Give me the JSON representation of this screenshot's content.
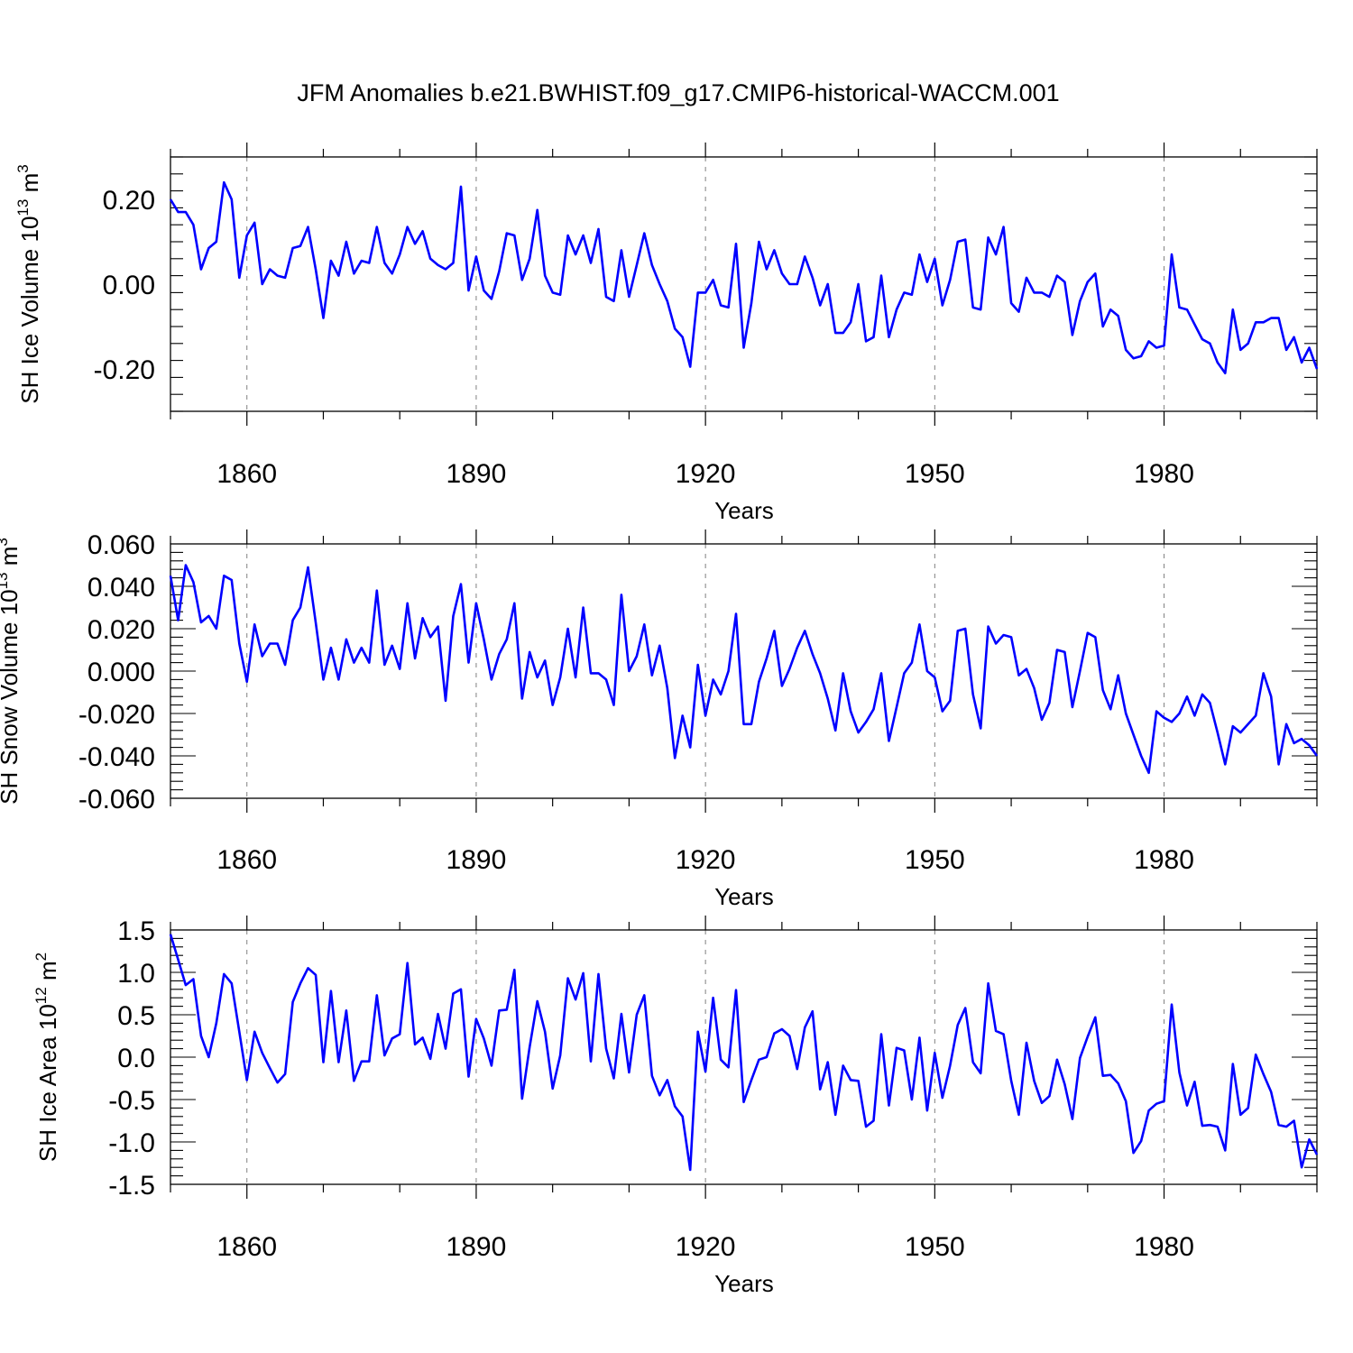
{
  "title": "JFM Anomalies b.e21.BWHIST.f09_g17.CMIP6-historical-WACCM.001",
  "colors": {
    "line": "#0000ff",
    "axis": "#000000",
    "grid": "#808080"
  },
  "chart_data": [
    {
      "type": "line",
      "ylabel": {
        "text": "SH Ice Volume 10",
        "exp": "13",
        "unit": " m",
        "unit_exp": "3"
      },
      "xlabel": "Years",
      "x_start": 1850,
      "xlim": [
        1850,
        2000
      ],
      "x_ticks": [
        1860,
        1890,
        1920,
        1950,
        1980
      ],
      "x_tick_labels": [
        "1860",
        "1890",
        "1920",
        "1950",
        "1980"
      ],
      "ylim": [
        -0.3,
        0.3
      ],
      "y_ticks": [
        0.2,
        0.0,
        -0.2
      ],
      "y_tick_labels": [
        "0.20",
        "0.00",
        "-0.20"
      ],
      "values": [
        0.2,
        0.17,
        0.17,
        0.14,
        0.035,
        0.085,
        0.1,
        0.24,
        0.2,
        0.015,
        0.115,
        0.145,
        0.0,
        0.035,
        0.02,
        0.015,
        0.085,
        0.09,
        0.135,
        0.035,
        -0.08,
        0.055,
        0.02,
        0.1,
        0.025,
        0.055,
        0.05,
        0.135,
        0.05,
        0.025,
        0.07,
        0.135,
        0.095,
        0.125,
        0.06,
        0.045,
        0.035,
        0.05,
        0.23,
        -0.015,
        0.065,
        -0.015,
        -0.035,
        0.03,
        0.12,
        0.115,
        0.01,
        0.06,
        0.175,
        0.02,
        -0.02,
        -0.025,
        0.115,
        0.07,
        0.115,
        0.05,
        0.13,
        -0.03,
        -0.04,
        0.08,
        -0.03,
        0.045,
        0.12,
        0.045,
        0.0,
        -0.04,
        -0.105,
        -0.125,
        -0.195,
        -0.02,
        -0.02,
        0.01,
        -0.05,
        -0.055,
        0.095,
        -0.15,
        -0.045,
        0.1,
        0.035,
        0.08,
        0.025,
        0.0,
        0.0,
        0.065,
        0.015,
        -0.05,
        0.0,
        -0.115,
        -0.115,
        -0.09,
        0.0,
        -0.135,
        -0.125,
        0.02,
        -0.125,
        -0.06,
        -0.02,
        -0.025,
        0.07,
        0.005,
        0.06,
        -0.05,
        0.01,
        0.1,
        0.105,
        -0.055,
        -0.06,
        0.11,
        0.07,
        0.135,
        -0.045,
        -0.065,
        0.015,
        -0.02,
        -0.02,
        -0.03,
        0.02,
        0.005,
        -0.12,
        -0.04,
        0.005,
        0.025,
        -0.1,
        -0.06,
        -0.075,
        -0.155,
        -0.175,
        -0.17,
        -0.135,
        -0.15,
        -0.145,
        0.07,
        -0.055,
        -0.06,
        -0.095,
        -0.13,
        -0.14,
        -0.185,
        -0.21,
        -0.06,
        -0.155,
        -0.14,
        -0.09,
        -0.09,
        -0.08,
        -0.08,
        -0.155,
        -0.125,
        -0.185,
        -0.15,
        -0.2
      ]
    },
    {
      "type": "line",
      "ylabel": {
        "text": "SH Snow Volume 10",
        "exp": "13",
        "unit": " m",
        "unit_exp": "3"
      },
      "xlabel": "Years",
      "x_start": 1850,
      "xlim": [
        1850,
        2000
      ],
      "x_ticks": [
        1860,
        1890,
        1920,
        1950,
        1980
      ],
      "x_tick_labels": [
        "1860",
        "1890",
        "1920",
        "1950",
        "1980"
      ],
      "ylim": [
        -0.06,
        0.06
      ],
      "y_ticks": [
        0.06,
        0.04,
        0.02,
        0.0,
        -0.02,
        -0.04,
        -0.06
      ],
      "y_tick_labels": [
        "0.060",
        "0.040",
        "0.020",
        "0.000",
        "-0.020",
        "-0.040",
        "-0.060"
      ],
      "values": [
        0.045,
        0.024,
        0.05,
        0.042,
        0.023,
        0.026,
        0.02,
        0.045,
        0.043,
        0.013,
        -0.005,
        0.022,
        0.007,
        0.013,
        0.013,
        0.003,
        0.024,
        0.03,
        0.049,
        0.023,
        -0.004,
        0.011,
        -0.004,
        0.015,
        0.004,
        0.011,
        0.004,
        0.038,
        0.003,
        0.012,
        0.001,
        0.032,
        0.006,
        0.025,
        0.016,
        0.021,
        -0.014,
        0.026,
        0.041,
        0.004,
        0.032,
        0.015,
        -0.004,
        0.008,
        0.015,
        0.032,
        -0.013,
        0.009,
        -0.003,
        0.005,
        -0.016,
        -0.003,
        0.02,
        -0.003,
        0.03,
        -0.001,
        -0.001,
        -0.004,
        -0.016,
        0.036,
        0.0,
        0.007,
        0.022,
        -0.002,
        0.012,
        -0.008,
        -0.041,
        -0.021,
        -0.036,
        0.003,
        -0.021,
        -0.004,
        -0.011,
        0.0,
        0.027,
        -0.025,
        -0.025,
        -0.005,
        0.006,
        0.019,
        -0.007,
        0.001,
        0.011,
        0.019,
        0.008,
        -0.001,
        -0.013,
        -0.028,
        -0.001,
        -0.019,
        -0.029,
        -0.024,
        -0.018,
        -0.001,
        -0.033,
        -0.017,
        -0.001,
        0.004,
        0.022,
        0.0,
        -0.003,
        -0.019,
        -0.014,
        0.019,
        0.02,
        -0.011,
        -0.027,
        0.021,
        0.013,
        0.017,
        0.016,
        -0.002,
        0.001,
        -0.008,
        -0.023,
        -0.015,
        0.01,
        0.009,
        -0.017,
        0.0,
        0.018,
        0.016,
        -0.009,
        -0.018,
        -0.002,
        -0.02,
        -0.03,
        -0.04,
        -0.048,
        -0.019,
        -0.022,
        -0.024,
        -0.02,
        -0.012,
        -0.021,
        -0.011,
        -0.015,
        -0.029,
        -0.044,
        -0.026,
        -0.029,
        -0.025,
        -0.021,
        -0.001,
        -0.012,
        -0.044,
        -0.025,
        -0.034,
        -0.032,
        -0.035,
        -0.04
      ]
    },
    {
      "type": "line",
      "ylabel": {
        "text": "SH Ice Area 10",
        "exp": "12",
        "unit": " m",
        "unit_exp": "2"
      },
      "xlabel": "Years",
      "x_start": 1850,
      "xlim": [
        1850,
        2000
      ],
      "x_ticks": [
        1860,
        1890,
        1920,
        1950,
        1980
      ],
      "x_tick_labels": [
        "1860",
        "1890",
        "1920",
        "1950",
        "1980"
      ],
      "ylim": [
        -1.5,
        1.5
      ],
      "y_ticks": [
        1.5,
        1.0,
        0.5,
        0.0,
        -0.5,
        -1.0,
        -1.5
      ],
      "y_tick_labels": [
        "1.5",
        "1.0",
        "0.5",
        "0.0",
        "-0.5",
        "-1.0",
        "-1.5"
      ],
      "values": [
        1.45,
        1.15,
        0.85,
        0.92,
        0.25,
        0.0,
        0.4,
        0.98,
        0.87,
        0.3,
        -0.27,
        0.3,
        0.05,
        -0.13,
        -0.3,
        -0.2,
        0.65,
        0.87,
        1.05,
        0.97,
        -0.06,
        0.78,
        -0.06,
        0.55,
        -0.28,
        -0.05,
        -0.05,
        0.73,
        0.02,
        0.22,
        0.27,
        1.11,
        0.15,
        0.23,
        -0.02,
        0.51,
        0.1,
        0.75,
        0.8,
        -0.23,
        0.45,
        0.22,
        -0.1,
        0.55,
        0.56,
        1.03,
        -0.49,
        0.12,
        0.66,
        0.3,
        -0.37,
        0.02,
        0.93,
        0.68,
        0.99,
        -0.05,
        0.98,
        0.1,
        -0.25,
        0.51,
        -0.18,
        0.5,
        0.73,
        -0.22,
        -0.45,
        -0.27,
        -0.58,
        -0.7,
        -1.33,
        0.3,
        -0.17,
        0.7,
        -0.03,
        -0.12,
        0.79,
        -0.53,
        -0.27,
        -0.03,
        0.0,
        0.28,
        0.33,
        0.25,
        -0.14,
        0.35,
        0.54,
        -0.38,
        -0.06,
        -0.68,
        -0.1,
        -0.27,
        -0.28,
        -0.82,
        -0.75,
        0.27,
        -0.57,
        0.11,
        0.08,
        -0.5,
        0.23,
        -0.63,
        0.05,
        -0.48,
        -0.1,
        0.38,
        0.58,
        -0.06,
        -0.19,
        0.87,
        0.31,
        0.27,
        -0.28,
        -0.68,
        0.17,
        -0.28,
        -0.54,
        -0.46,
        -0.03,
        -0.32,
        -0.73,
        -0.01,
        0.24,
        0.47,
        -0.22,
        -0.21,
        -0.31,
        -0.52,
        -1.13,
        -0.99,
        -0.63,
        -0.55,
        -0.52,
        0.62,
        -0.18,
        -0.57,
        -0.29,
        -0.81,
        -0.8,
        -0.82,
        -1.1,
        -0.08,
        -0.68,
        -0.6,
        0.03,
        -0.2,
        -0.41,
        -0.8,
        -0.82,
        -0.75,
        -1.3,
        -0.97,
        -1.15
      ]
    }
  ]
}
